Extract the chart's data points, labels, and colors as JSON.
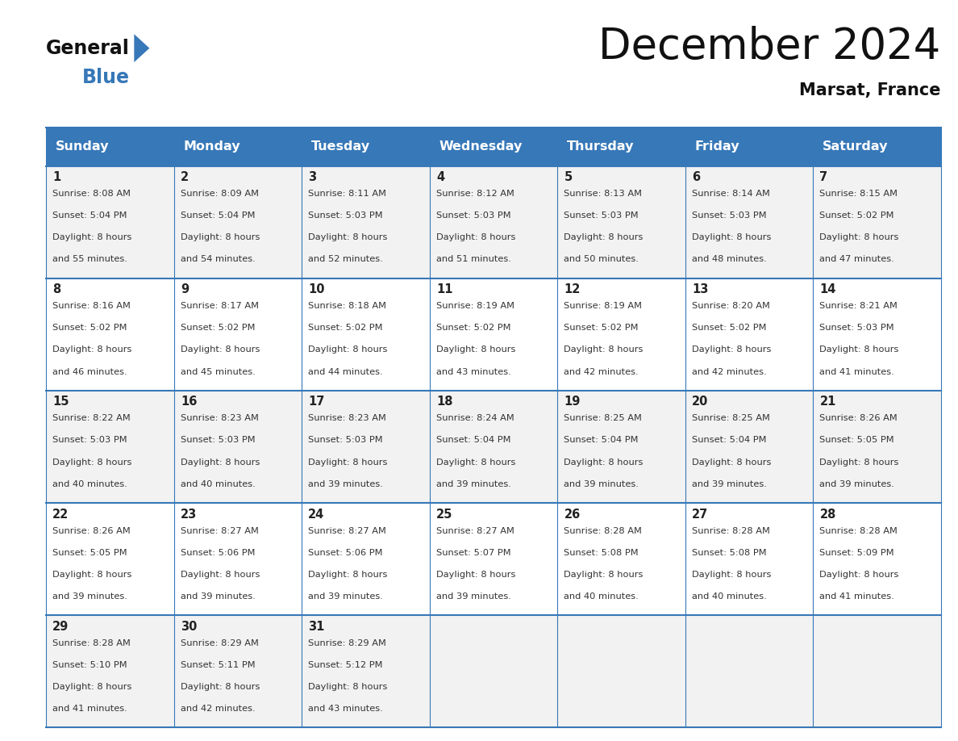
{
  "title": "December 2024",
  "subtitle": "Marsat, France",
  "header_color": "#3778b8",
  "header_text_color": "#ffffff",
  "days_of_week": [
    "Sunday",
    "Monday",
    "Tuesday",
    "Wednesday",
    "Thursday",
    "Friday",
    "Saturday"
  ],
  "weeks": [
    [
      {
        "day": 1,
        "sunrise": "8:08 AM",
        "sunset": "5:04 PM",
        "daylight": "8 hours",
        "daylight2": "and 55 minutes."
      },
      {
        "day": 2,
        "sunrise": "8:09 AM",
        "sunset": "5:04 PM",
        "daylight": "8 hours",
        "daylight2": "and 54 minutes."
      },
      {
        "day": 3,
        "sunrise": "8:11 AM",
        "sunset": "5:03 PM",
        "daylight": "8 hours",
        "daylight2": "and 52 minutes."
      },
      {
        "day": 4,
        "sunrise": "8:12 AM",
        "sunset": "5:03 PM",
        "daylight": "8 hours",
        "daylight2": "and 51 minutes."
      },
      {
        "day": 5,
        "sunrise": "8:13 AM",
        "sunset": "5:03 PM",
        "daylight": "8 hours",
        "daylight2": "and 50 minutes."
      },
      {
        "day": 6,
        "sunrise": "8:14 AM",
        "sunset": "5:03 PM",
        "daylight": "8 hours",
        "daylight2": "and 48 minutes."
      },
      {
        "day": 7,
        "sunrise": "8:15 AM",
        "sunset": "5:02 PM",
        "daylight": "8 hours",
        "daylight2": "and 47 minutes."
      }
    ],
    [
      {
        "day": 8,
        "sunrise": "8:16 AM",
        "sunset": "5:02 PM",
        "daylight": "8 hours",
        "daylight2": "and 46 minutes."
      },
      {
        "day": 9,
        "sunrise": "8:17 AM",
        "sunset": "5:02 PM",
        "daylight": "8 hours",
        "daylight2": "and 45 minutes."
      },
      {
        "day": 10,
        "sunrise": "8:18 AM",
        "sunset": "5:02 PM",
        "daylight": "8 hours",
        "daylight2": "and 44 minutes."
      },
      {
        "day": 11,
        "sunrise": "8:19 AM",
        "sunset": "5:02 PM",
        "daylight": "8 hours",
        "daylight2": "and 43 minutes."
      },
      {
        "day": 12,
        "sunrise": "8:19 AM",
        "sunset": "5:02 PM",
        "daylight": "8 hours",
        "daylight2": "and 42 minutes."
      },
      {
        "day": 13,
        "sunrise": "8:20 AM",
        "sunset": "5:02 PM",
        "daylight": "8 hours",
        "daylight2": "and 42 minutes."
      },
      {
        "day": 14,
        "sunrise": "8:21 AM",
        "sunset": "5:03 PM",
        "daylight": "8 hours",
        "daylight2": "and 41 minutes."
      }
    ],
    [
      {
        "day": 15,
        "sunrise": "8:22 AM",
        "sunset": "5:03 PM",
        "daylight": "8 hours",
        "daylight2": "and 40 minutes."
      },
      {
        "day": 16,
        "sunrise": "8:23 AM",
        "sunset": "5:03 PM",
        "daylight": "8 hours",
        "daylight2": "and 40 minutes."
      },
      {
        "day": 17,
        "sunrise": "8:23 AM",
        "sunset": "5:03 PM",
        "daylight": "8 hours",
        "daylight2": "and 39 minutes."
      },
      {
        "day": 18,
        "sunrise": "8:24 AM",
        "sunset": "5:04 PM",
        "daylight": "8 hours",
        "daylight2": "and 39 minutes."
      },
      {
        "day": 19,
        "sunrise": "8:25 AM",
        "sunset": "5:04 PM",
        "daylight": "8 hours",
        "daylight2": "and 39 minutes."
      },
      {
        "day": 20,
        "sunrise": "8:25 AM",
        "sunset": "5:04 PM",
        "daylight": "8 hours",
        "daylight2": "and 39 minutes."
      },
      {
        "day": 21,
        "sunrise": "8:26 AM",
        "sunset": "5:05 PM",
        "daylight": "8 hours",
        "daylight2": "and 39 minutes."
      }
    ],
    [
      {
        "day": 22,
        "sunrise": "8:26 AM",
        "sunset": "5:05 PM",
        "daylight": "8 hours",
        "daylight2": "and 39 minutes."
      },
      {
        "day": 23,
        "sunrise": "8:27 AM",
        "sunset": "5:06 PM",
        "daylight": "8 hours",
        "daylight2": "and 39 minutes."
      },
      {
        "day": 24,
        "sunrise": "8:27 AM",
        "sunset": "5:06 PM",
        "daylight": "8 hours",
        "daylight2": "and 39 minutes."
      },
      {
        "day": 25,
        "sunrise": "8:27 AM",
        "sunset": "5:07 PM",
        "daylight": "8 hours",
        "daylight2": "and 39 minutes."
      },
      {
        "day": 26,
        "sunrise": "8:28 AM",
        "sunset": "5:08 PM",
        "daylight": "8 hours",
        "daylight2": "and 40 minutes."
      },
      {
        "day": 27,
        "sunrise": "8:28 AM",
        "sunset": "5:08 PM",
        "daylight": "8 hours",
        "daylight2": "and 40 minutes."
      },
      {
        "day": 28,
        "sunrise": "8:28 AM",
        "sunset": "5:09 PM",
        "daylight": "8 hours",
        "daylight2": "and 41 minutes."
      }
    ],
    [
      {
        "day": 29,
        "sunrise": "8:28 AM",
        "sunset": "5:10 PM",
        "daylight": "8 hours",
        "daylight2": "and 41 minutes."
      },
      {
        "day": 30,
        "sunrise": "8:29 AM",
        "sunset": "5:11 PM",
        "daylight": "8 hours",
        "daylight2": "and 42 minutes."
      },
      {
        "day": 31,
        "sunrise": "8:29 AM",
        "sunset": "5:12 PM",
        "daylight": "8 hours",
        "daylight2": "and 43 minutes."
      },
      null,
      null,
      null,
      null
    ]
  ],
  "cell_bg_even": "#f2f2f2",
  "cell_bg_odd": "#ffffff",
  "grid_line_color": "#3778b8",
  "day_number_color": "#222222",
  "text_color": "#333333",
  "logo_blue_color": "#3778b8",
  "logo_text_color": "#111111",
  "title_fontsize": 38,
  "subtitle_fontsize": 15,
  "header_fontsize": 11.5,
  "day_num_fontsize": 10.5,
  "cell_fontsize": 8.2
}
